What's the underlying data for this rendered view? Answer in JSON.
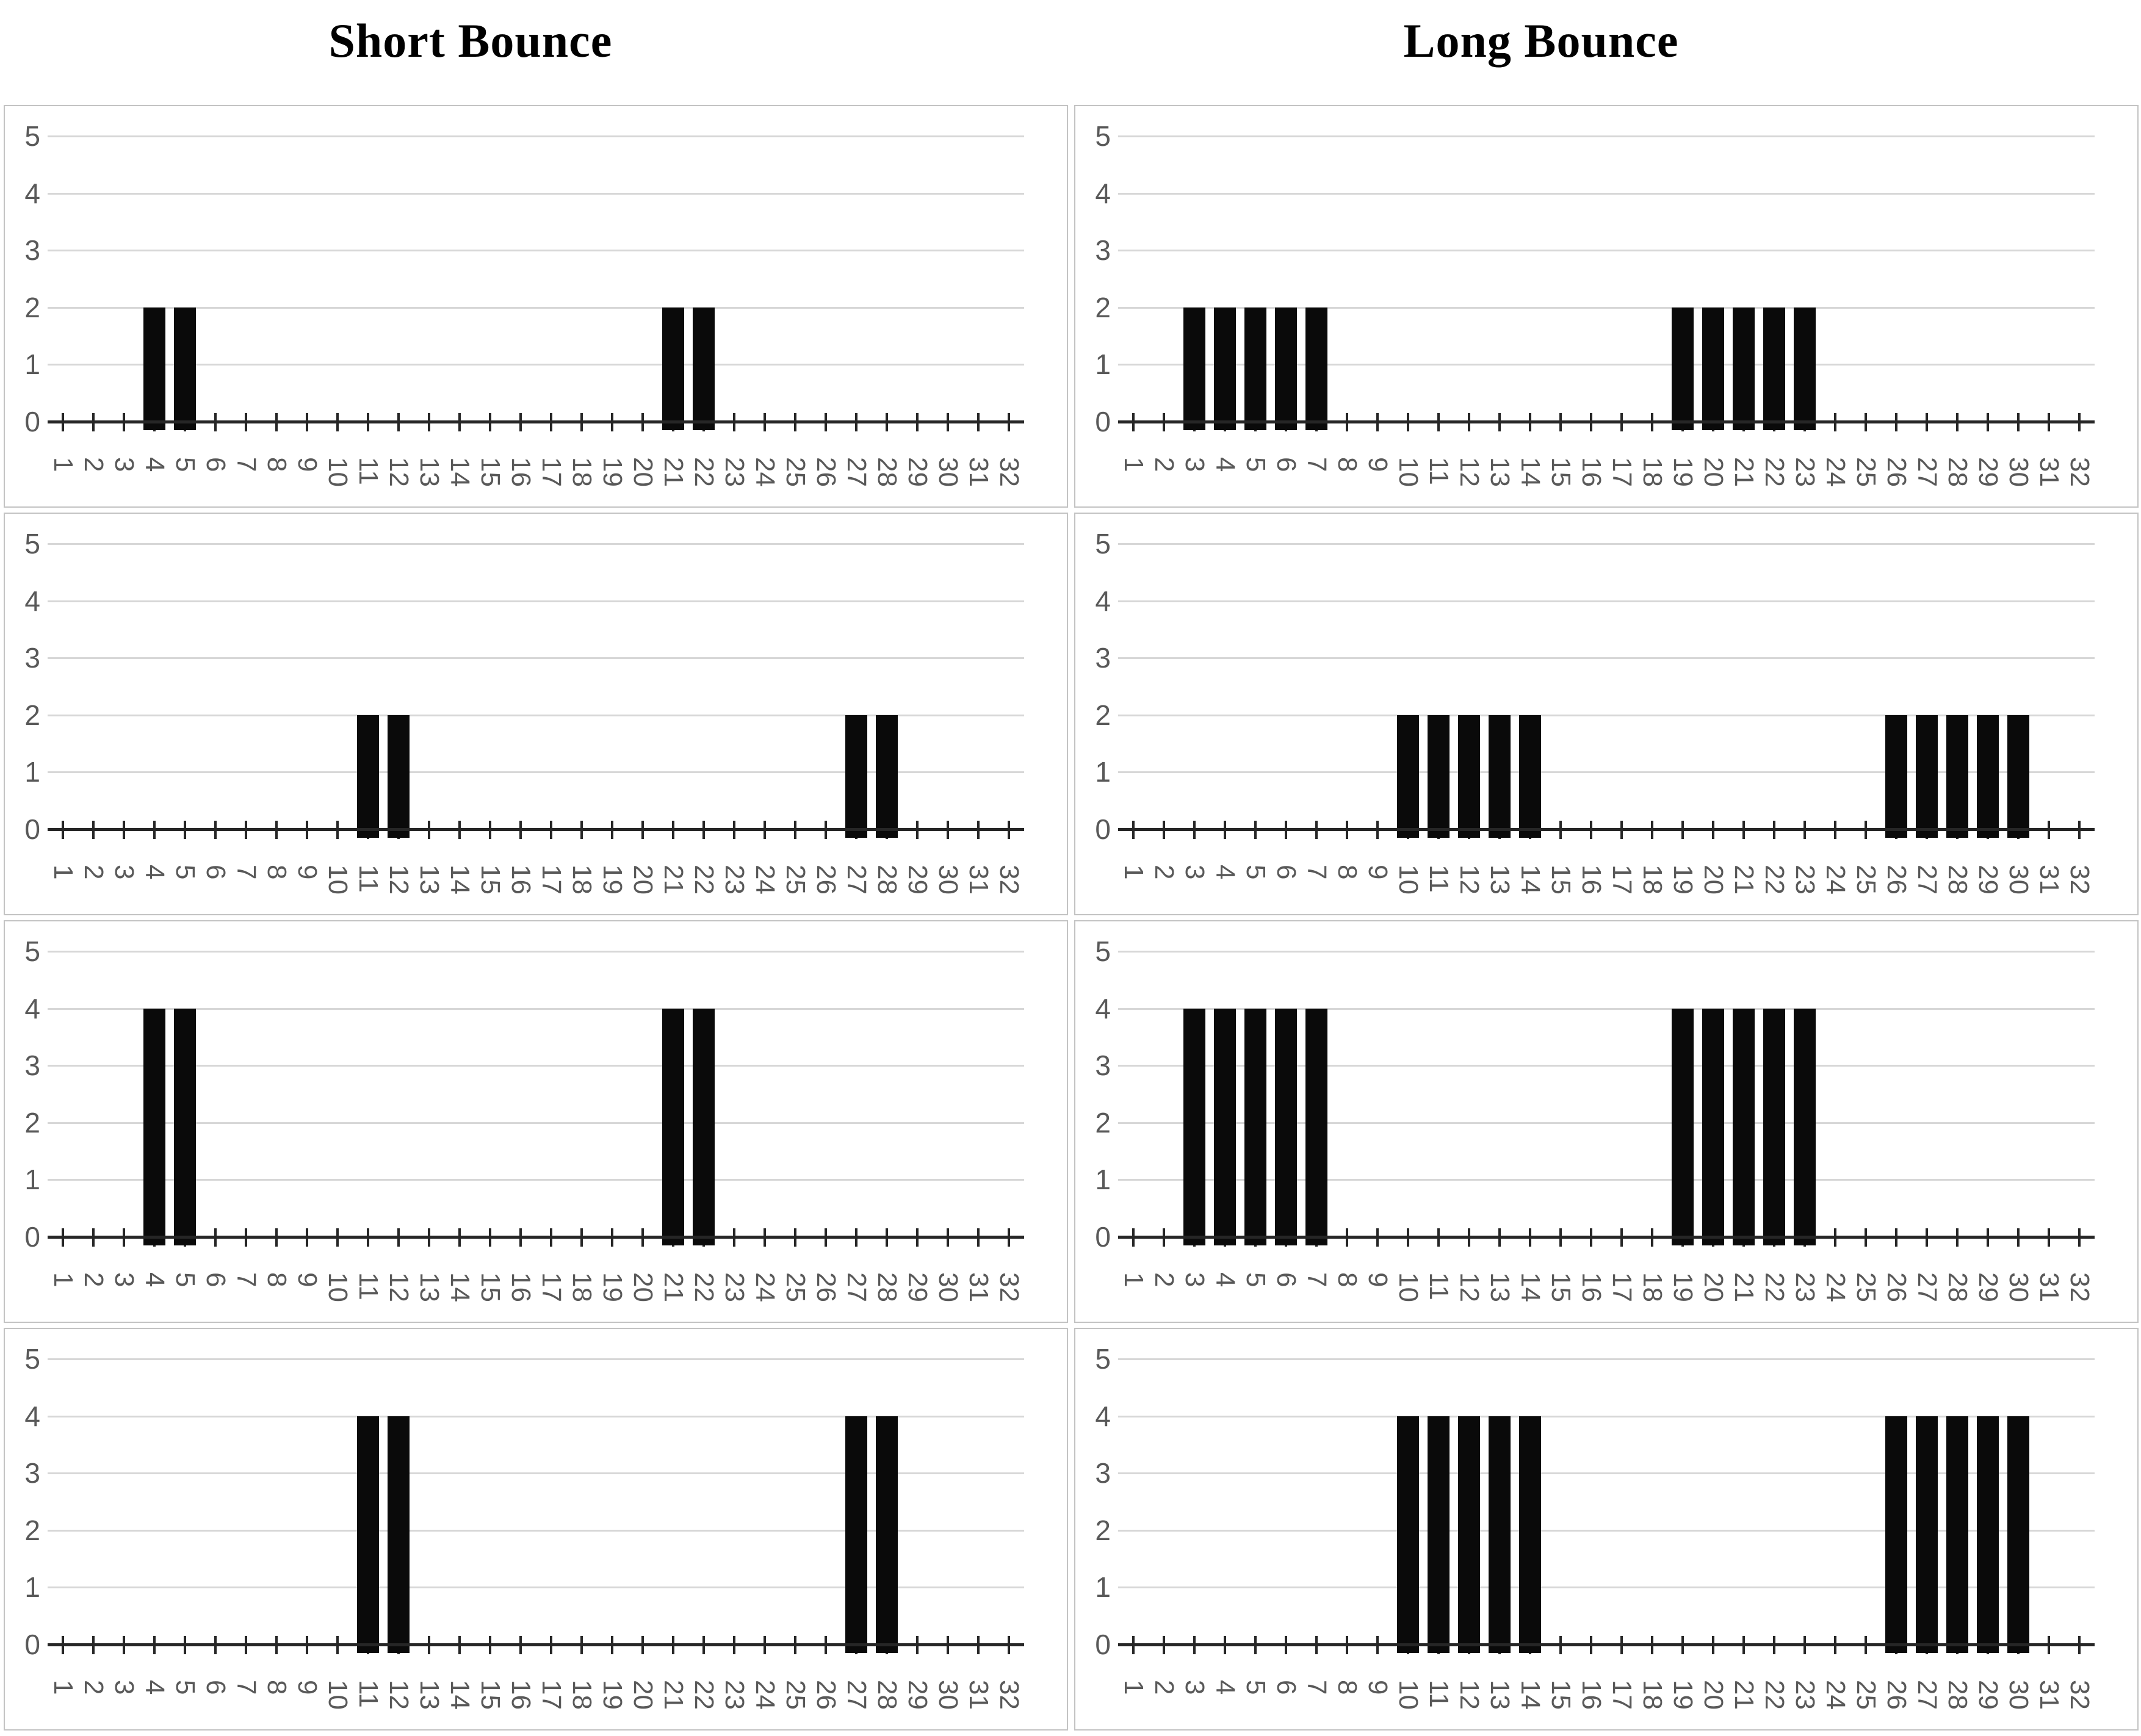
{
  "figure": {
    "column_titles": [
      {
        "text": "Short Bounce"
      },
      {
        "text": "Long Bounce"
      }
    ]
  },
  "axes": {
    "x_categories": [
      1,
      2,
      3,
      4,
      5,
      6,
      7,
      8,
      9,
      10,
      11,
      12,
      13,
      14,
      15,
      16,
      17,
      18,
      19,
      20,
      21,
      22,
      23,
      24,
      25,
      26,
      27,
      28,
      29,
      30,
      31,
      32
    ],
    "y_ticks": [
      0,
      1,
      2,
      3,
      4,
      5
    ],
    "y_max": 5,
    "grid": "horizontal-on",
    "x_label_rotation_deg": 90
  },
  "colors": {
    "bar": "#0a0a0a",
    "gridline": "#d7d7d7",
    "axis": "#262626",
    "tick": "#262626",
    "label": "#595959",
    "panel_border": "#c3c3c3",
    "title": "#000000",
    "background": "#ffffff"
  },
  "chart_data": [
    {
      "type": "bar",
      "column": "Short Bounce",
      "row": 1,
      "title": "",
      "xlabel": "",
      "ylabel": "",
      "ylim": [
        0,
        5
      ],
      "categories": "1-32 (see axes.x_categories)",
      "values": [
        0,
        0,
        0,
        2,
        2,
        0,
        0,
        0,
        0,
        0,
        0,
        0,
        0,
        0,
        0,
        0,
        0,
        0,
        0,
        0,
        2,
        2,
        0,
        0,
        0,
        0,
        0,
        0,
        0,
        0,
        0,
        0
      ]
    },
    {
      "type": "bar",
      "column": "Long Bounce",
      "row": 1,
      "title": "",
      "xlabel": "",
      "ylabel": "",
      "ylim": [
        0,
        5
      ],
      "categories": "1-32 (see axes.x_categories)",
      "values": [
        0,
        0,
        2,
        2,
        2,
        2,
        2,
        0,
        0,
        0,
        0,
        0,
        0,
        0,
        0,
        0,
        0,
        0,
        2,
        2,
        2,
        2,
        2,
        0,
        0,
        0,
        0,
        0,
        0,
        0,
        0,
        0
      ]
    },
    {
      "type": "bar",
      "column": "Short Bounce",
      "row": 2,
      "title": "",
      "xlabel": "",
      "ylabel": "",
      "ylim": [
        0,
        5
      ],
      "categories": "1-32 (see axes.x_categories)",
      "values": [
        0,
        0,
        0,
        0,
        0,
        0,
        0,
        0,
        0,
        0,
        2,
        2,
        0,
        0,
        0,
        0,
        0,
        0,
        0,
        0,
        0,
        0,
        0,
        0,
        0,
        0,
        2,
        2,
        0,
        0,
        0,
        0
      ]
    },
    {
      "type": "bar",
      "column": "Long Bounce",
      "row": 2,
      "title": "",
      "xlabel": "",
      "ylabel": "",
      "ylim": [
        0,
        5
      ],
      "categories": "1-32 (see axes.x_categories)",
      "values": [
        0,
        0,
        0,
        0,
        0,
        0,
        0,
        0,
        0,
        2,
        2,
        2,
        2,
        2,
        0,
        0,
        0,
        0,
        0,
        0,
        0,
        0,
        0,
        0,
        0,
        2,
        2,
        2,
        2,
        2,
        0,
        0
      ]
    },
    {
      "type": "bar",
      "column": "Short Bounce",
      "row": 3,
      "title": "",
      "xlabel": "",
      "ylabel": "",
      "ylim": [
        0,
        5
      ],
      "categories": "1-32 (see axes.x_categories)",
      "values": [
        0,
        0,
        0,
        4,
        4,
        0,
        0,
        0,
        0,
        0,
        0,
        0,
        0,
        0,
        0,
        0,
        0,
        0,
        0,
        0,
        4,
        4,
        0,
        0,
        0,
        0,
        0,
        0,
        0,
        0,
        0,
        0
      ]
    },
    {
      "type": "bar",
      "column": "Long Bounce",
      "row": 3,
      "title": "",
      "xlabel": "",
      "ylabel": "",
      "ylim": [
        0,
        5
      ],
      "categories": "1-32 (see axes.x_categories)",
      "values": [
        0,
        0,
        4,
        4,
        4,
        4,
        4,
        0,
        0,
        0,
        0,
        0,
        0,
        0,
        0,
        0,
        0,
        0,
        4,
        4,
        4,
        4,
        4,
        0,
        0,
        0,
        0,
        0,
        0,
        0,
        0,
        0
      ]
    },
    {
      "type": "bar",
      "column": "Short Bounce",
      "row": 4,
      "title": "",
      "xlabel": "",
      "ylabel": "",
      "ylim": [
        0,
        5
      ],
      "categories": "1-32 (see axes.x_categories)",
      "values": [
        0,
        0,
        0,
        0,
        0,
        0,
        0,
        0,
        0,
        0,
        4,
        4,
        0,
        0,
        0,
        0,
        0,
        0,
        0,
        0,
        0,
        0,
        0,
        0,
        0,
        0,
        4,
        4,
        0,
        0,
        0,
        0
      ]
    },
    {
      "type": "bar",
      "column": "Long Bounce",
      "row": 4,
      "title": "",
      "xlabel": "",
      "ylabel": "",
      "ylim": [
        0,
        5
      ],
      "categories": "1-32 (see axes.x_categories)",
      "values": [
        0,
        0,
        0,
        0,
        0,
        0,
        0,
        0,
        0,
        4,
        4,
        4,
        4,
        4,
        0,
        0,
        0,
        0,
        0,
        0,
        0,
        0,
        0,
        0,
        0,
        4,
        4,
        4,
        4,
        4,
        0,
        0
      ]
    }
  ]
}
